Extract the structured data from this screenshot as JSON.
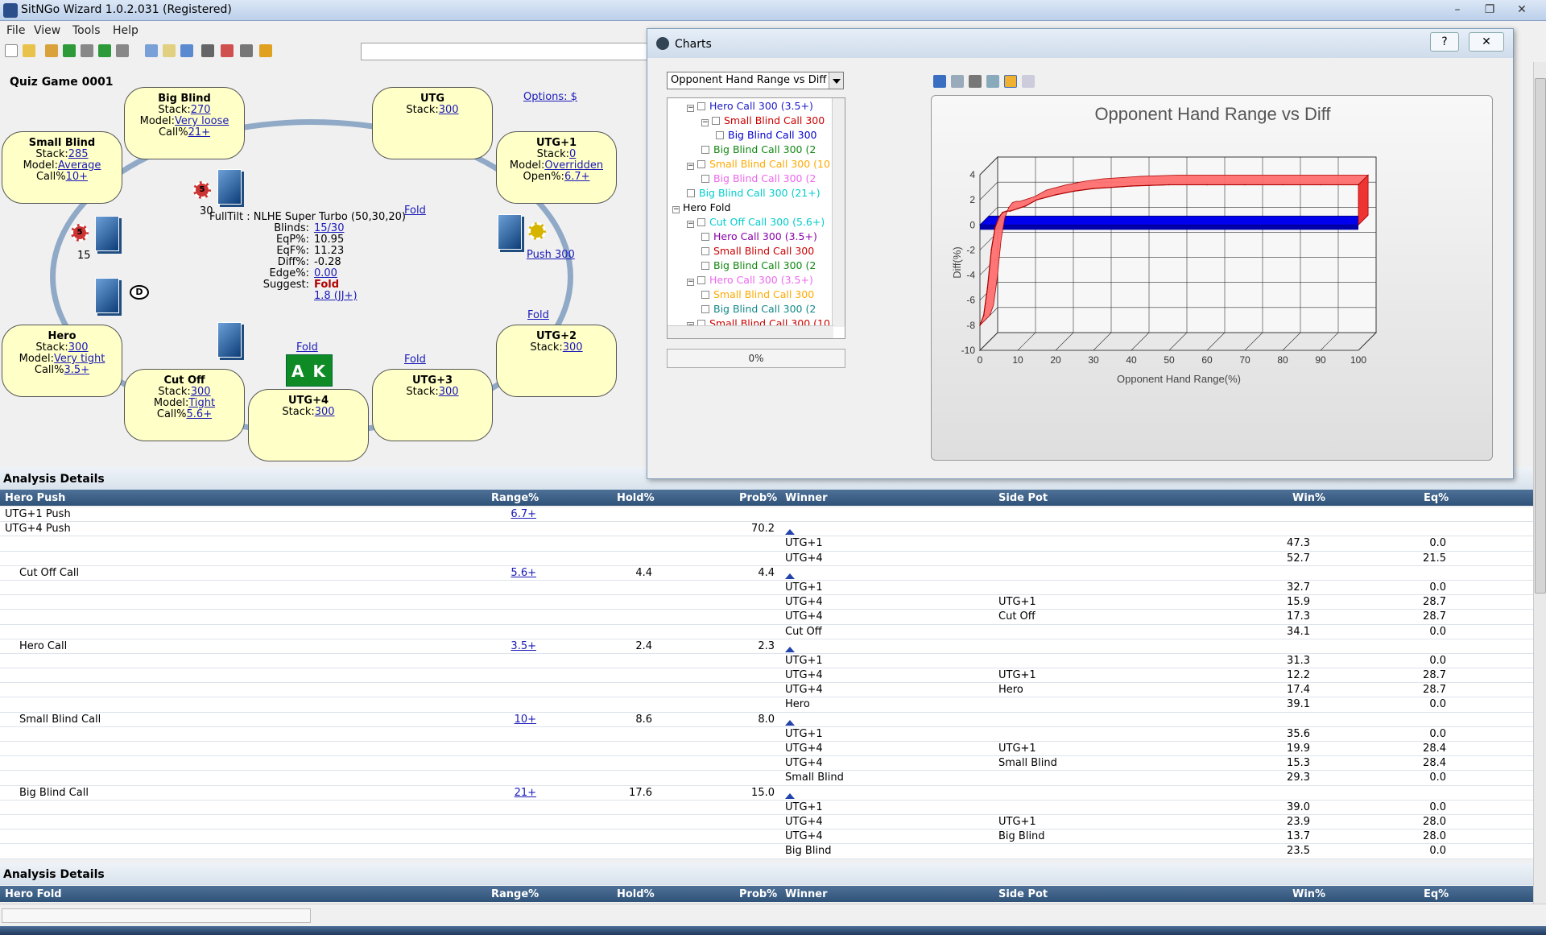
{
  "window": {
    "title": "SitNGo Wizard 1.0.2.031 (Registered)"
  },
  "menu": [
    "File",
    "View",
    "Tools",
    "Help"
  ],
  "game": {
    "title": "Quiz Game 0001",
    "options_label": "Options: $"
  },
  "seats": [
    {
      "id": "big-blind",
      "name": "Big Blind",
      "lines": [
        {
          "k": "Stack:",
          "v": "270"
        },
        {
          "k": "Model:",
          "v": "Very loose"
        },
        {
          "k": "Call%",
          "v": "21+"
        }
      ]
    },
    {
      "id": "utg",
      "name": "UTG",
      "lines": [
        {
          "k": "Stack:",
          "v": "300"
        }
      ]
    },
    {
      "id": "small-blind",
      "name": "Small Blind",
      "lines": [
        {
          "k": "Stack:",
          "v": "285"
        },
        {
          "k": "Model:",
          "v": "Average"
        },
        {
          "k": "Call%",
          "v": "10+"
        }
      ]
    },
    {
      "id": "utg1",
      "name": "UTG+1",
      "lines": [
        {
          "k": "Stack:",
          "v": "0"
        },
        {
          "k": "Model:",
          "v": "Overridden"
        },
        {
          "k": "Open%:",
          "v": "6.7+"
        }
      ]
    },
    {
      "id": "hero",
      "name": "Hero",
      "lines": [
        {
          "k": "Stack:",
          "v": "300"
        },
        {
          "k": "Model:",
          "v": "Very tight"
        },
        {
          "k": "Call%",
          "v": "3.5+"
        }
      ]
    },
    {
      "id": "utg2",
      "name": "UTG+2",
      "lines": [
        {
          "k": "Stack:",
          "v": "300"
        }
      ]
    },
    {
      "id": "cut-off",
      "name": "Cut Off",
      "lines": [
        {
          "k": "Stack:",
          "v": "300"
        },
        {
          "k": "Model:",
          "v": "Tight"
        },
        {
          "k": "Call%",
          "v": "5.6+"
        }
      ]
    },
    {
      "id": "utg4",
      "name": "UTG+4",
      "lines": [
        {
          "k": "Stack:",
          "v": "300"
        }
      ]
    },
    {
      "id": "utg3",
      "name": "UTG+3",
      "lines": [
        {
          "k": "Stack:",
          "v": "300"
        }
      ]
    }
  ],
  "info": {
    "header": "FullTilt : NLHE Super Turbo (50,30,20)",
    "rows": [
      {
        "label": "Blinds:",
        "value": "15/30",
        "link": true
      },
      {
        "label": "EqP%:",
        "value": "10.95"
      },
      {
        "label": "EqF%:",
        "value": "11.23"
      },
      {
        "label": "Diff%:",
        "value": "-0.28"
      },
      {
        "label": "Edge%:",
        "value": "0.00",
        "link": true
      },
      {
        "label": "Suggest:",
        "value": "Fold",
        "bold": true
      }
    ],
    "suggest_detail": "1.8 (JJ+)"
  },
  "table_actions": {
    "fold": "Fold",
    "push": "Push 300"
  },
  "chips": {
    "bb_amount": "30",
    "sb_amount": "15",
    "chip_label": "5",
    "dealer": "D"
  },
  "hole_cards": "A K",
  "analysis": {
    "title": "Analysis Details",
    "push_header": {
      "c1": "Hero Push",
      "c2": "Range%",
      "c3": "Hold%",
      "c4": "Prob%",
      "c5": "Winner",
      "c6": "Side Pot",
      "c7": "Win%",
      "c8": "Eq%"
    },
    "rows": [
      {
        "a": "UTG+1 Push",
        "r": "6.7+"
      },
      {
        "a": "UTG+4 Push",
        "p": "70.2",
        "tri": true
      },
      {
        "w": "UTG+1",
        "win": "47.3",
        "eq": "0.0"
      },
      {
        "w": "UTG+4",
        "win": "52.7",
        "eq": "21.5"
      },
      {
        "a": "Cut Off Call",
        "ind": true,
        "r": "5.6+",
        "h": "4.4",
        "p": "4.4",
        "tri": true
      },
      {
        "w": "UTG+1",
        "win": "32.7",
        "eq": "0.0"
      },
      {
        "w": "UTG+4",
        "s": "UTG+1",
        "win": "15.9",
        "eq": "28.7"
      },
      {
        "w": "UTG+4",
        "s": "Cut Off",
        "win": "17.3",
        "eq": "28.7"
      },
      {
        "w": "Cut Off",
        "win": "34.1",
        "eq": "0.0"
      },
      {
        "a": "Hero Call",
        "ind": true,
        "r": "3.5+",
        "h": "2.4",
        "p": "2.3",
        "tri": true
      },
      {
        "w": "UTG+1",
        "win": "31.3",
        "eq": "0.0"
      },
      {
        "w": "UTG+4",
        "s": "UTG+1",
        "win": "12.2",
        "eq": "28.7"
      },
      {
        "w": "UTG+4",
        "s": "Hero",
        "win": "17.4",
        "eq": "28.7"
      },
      {
        "w": "Hero",
        "win": "39.1",
        "eq": "0.0"
      },
      {
        "a": "Small Blind Call",
        "ind": true,
        "r": "10+",
        "h": "8.6",
        "p": "8.0",
        "tri": true
      },
      {
        "w": "UTG+1",
        "win": "35.6",
        "eq": "0.0"
      },
      {
        "w": "UTG+4",
        "s": "UTG+1",
        "win": "19.9",
        "eq": "28.4"
      },
      {
        "w": "UTG+4",
        "s": "Small Blind",
        "win": "15.3",
        "eq": "28.4"
      },
      {
        "w": "Small Blind",
        "win": "29.3",
        "eq": "0.0"
      },
      {
        "a": "Big Blind Call",
        "ind": true,
        "r": "21+",
        "h": "17.6",
        "p": "15.0",
        "tri": true
      },
      {
        "w": "UTG+1",
        "win": "39.0",
        "eq": "0.0"
      },
      {
        "w": "UTG+4",
        "s": "UTG+1",
        "win": "23.9",
        "eq": "28.0"
      },
      {
        "w": "UTG+4",
        "s": "Big Blind",
        "win": "13.7",
        "eq": "28.0"
      },
      {
        "w": "Big Blind",
        "win": "23.5",
        "eq": "0.0"
      }
    ],
    "title2": "Analysis Details",
    "fold_header": {
      "c1": "Hero Fold",
      "c2": "Range%",
      "c3": "Hold%",
      "c4": "Prob%",
      "c5": "Winner",
      "c6": "Side Pot",
      "c7": "Win%",
      "c8": "Eq%"
    }
  },
  "charts_window": {
    "title": "Charts",
    "help": "?",
    "close": "✕",
    "selector": "Opponent Hand Range vs Diff",
    "progress": "0%",
    "tree": [
      {
        "t": "Hero Call 300 (3.5+)",
        "c": "#1a1acc",
        "lvl": 1,
        "exp": "−"
      },
      {
        "t": "Small Blind Call 300",
        "c": "#cc0000",
        "lvl": 2,
        "exp": "−"
      },
      {
        "t": "Big Blind Call 300",
        "c": "#0000cc",
        "lvl": 3
      },
      {
        "t": "Big Blind Call 300 (2",
        "c": "#118811",
        "lvl": 2
      },
      {
        "t": "Small Blind Call 300 (10",
        "c": "#ffaa00",
        "lvl": 1,
        "exp": "−"
      },
      {
        "t": "Big Blind Call 300 (2",
        "c": "#ee66ee",
        "lvl": 2
      },
      {
        "t": "Big Blind Call 300 (21+)",
        "c": "#00cccc",
        "lvl": 1
      },
      {
        "t": "Hero Fold",
        "c": "#000000",
        "lvl": 0,
        "exp": "−",
        "nobox": true
      },
      {
        "t": "Cut Off Call 300 (5.6+)",
        "c": "#00cccc",
        "lvl": 1,
        "exp": "−"
      },
      {
        "t": "Hero Call 300 (3.5+)",
        "c": "#8800aa",
        "lvl": 2
      },
      {
        "t": "Small Blind Call 300",
        "c": "#cc0000",
        "lvl": 2
      },
      {
        "t": "Big Blind Call 300 (2",
        "c": "#118811",
        "lvl": 2
      },
      {
        "t": "Hero Call 300 (3.5+)",
        "c": "#ee66ee",
        "lvl": 1,
        "exp": "−"
      },
      {
        "t": "Small Blind Call 300",
        "c": "#ffaa00",
        "lvl": 2
      },
      {
        "t": "Big Blind Call 300 (2",
        "c": "#118888",
        "lvl": 2
      },
      {
        "t": "Small Blind Call 300 (10",
        "c": "#cc0000",
        "lvl": 1,
        "exp": "−"
      }
    ]
  },
  "chart_data": {
    "type": "area",
    "title": "Opponent Hand Range vs Diff",
    "xlabel": "Opponent Hand Range(%)",
    "ylabel": "Diff(%)",
    "xlim": [
      0,
      100
    ],
    "ylim": [
      -10,
      4
    ],
    "xticks": [
      0,
      10,
      20,
      30,
      40,
      50,
      60,
      70,
      80,
      90,
      100
    ],
    "yticks": [
      -10,
      -8,
      -6,
      -4,
      -2,
      0,
      2,
      4
    ],
    "grid": true,
    "series": [
      {
        "x": [
          0,
          1,
          2,
          3,
          4,
          5,
          6,
          7,
          8,
          10,
          12,
          15,
          20,
          25,
          30,
          40,
          50,
          60,
          70,
          80,
          90,
          100
        ],
        "values": [
          -8.0,
          -7.2,
          -5.0,
          -2.0,
          -0.2,
          0.6,
          1.0,
          1.1,
          1.1,
          1.3,
          1.5,
          2.0,
          2.4,
          2.7,
          2.9,
          3.1,
          3.2,
          3.2,
          3.2,
          3.2,
          3.2,
          3.2
        ],
        "color": "#ff3333"
      },
      {
        "x": [
          0,
          100
        ],
        "values": [
          0.0,
          0.0
        ],
        "color": "#0000ee"
      }
    ]
  }
}
